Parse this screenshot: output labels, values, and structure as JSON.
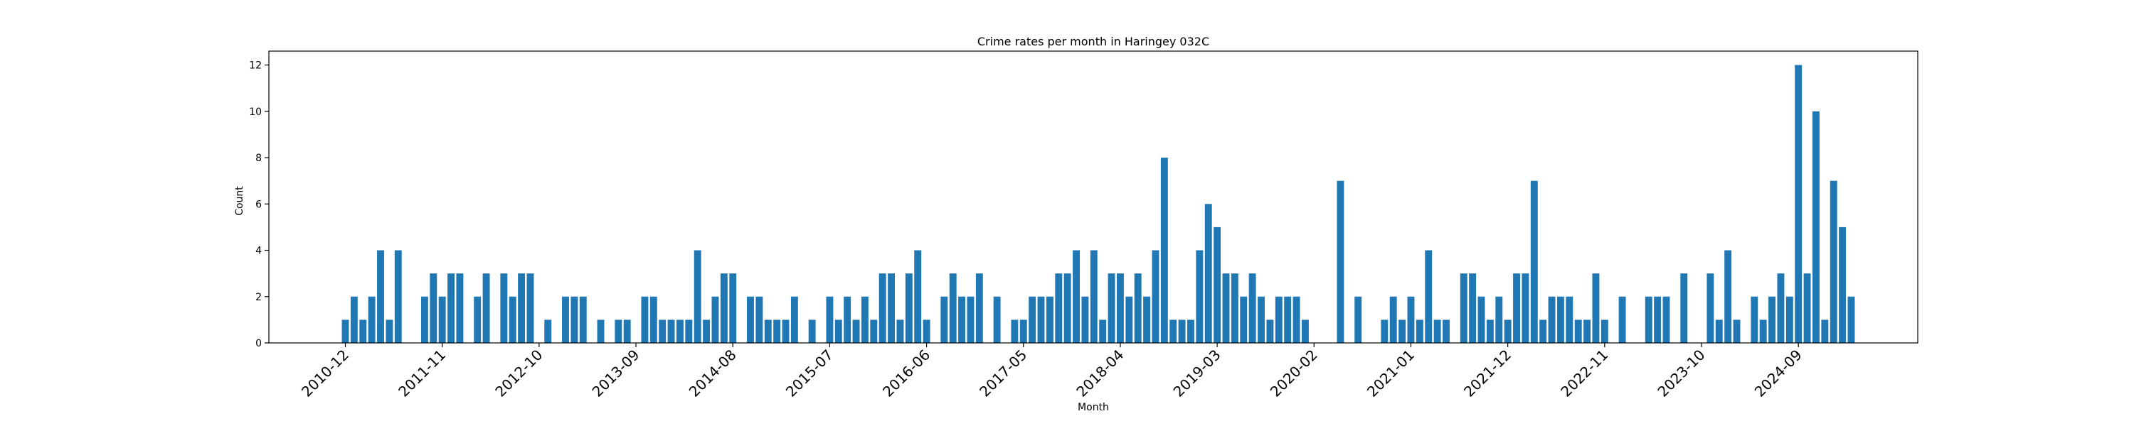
{
  "chart_data": {
    "type": "bar",
    "title": "Crime rates per month in Haringey 032C",
    "xlabel": "Month",
    "ylabel": "Count",
    "ylim": [
      0,
      12.6
    ],
    "yticks": [
      0,
      2,
      4,
      6,
      8,
      10,
      12
    ],
    "xticks": [
      "2010-12",
      "2011-11",
      "2012-10",
      "2013-09",
      "2014-08",
      "2015-07",
      "2016-06",
      "2017-05",
      "2018-04",
      "2019-03",
      "2020-02",
      "2021-01",
      "2021-12",
      "2022-11",
      "2023-10",
      "2024-09"
    ],
    "bar_color": "#1f77b4",
    "grid": false,
    "legend": "none",
    "start_month": "2010-12",
    "values": [
      1,
      2,
      1,
      2,
      4,
      1,
      4,
      0,
      0,
      2,
      3,
      2,
      3,
      3,
      0,
      2,
      3,
      0,
      3,
      2,
      3,
      3,
      0,
      1,
      0,
      2,
      2,
      2,
      0,
      1,
      0,
      1,
      1,
      0,
      2,
      2,
      1,
      1,
      1,
      1,
      4,
      1,
      2,
      3,
      3,
      0,
      2,
      2,
      1,
      1,
      1,
      2,
      0,
      1,
      0,
      2,
      1,
      2,
      1,
      2,
      1,
      3,
      3,
      1,
      3,
      4,
      1,
      0,
      2,
      3,
      2,
      2,
      3,
      0,
      2,
      0,
      1,
      1,
      2,
      2,
      2,
      3,
      3,
      4,
      2,
      4,
      1,
      3,
      3,
      2,
      3,
      2,
      4,
      8,
      1,
      1,
      1,
      4,
      6,
      5,
      3,
      3,
      2,
      3,
      2,
      1,
      2,
      2,
      2,
      1,
      0,
      0,
      0,
      7,
      0,
      2,
      0,
      0,
      1,
      2,
      1,
      2,
      1,
      4,
      1,
      1,
      0,
      3,
      3,
      2,
      1,
      2,
      1,
      3,
      3,
      7,
      1,
      2,
      2,
      2,
      1,
      1,
      3,
      1,
      0,
      2,
      0,
      0,
      2,
      2,
      2,
      0,
      3,
      0,
      0,
      3,
      1,
      4,
      1,
      0,
      2,
      1,
      2,
      3,
      2,
      12,
      3,
      10,
      1,
      7,
      5,
      2
    ]
  }
}
